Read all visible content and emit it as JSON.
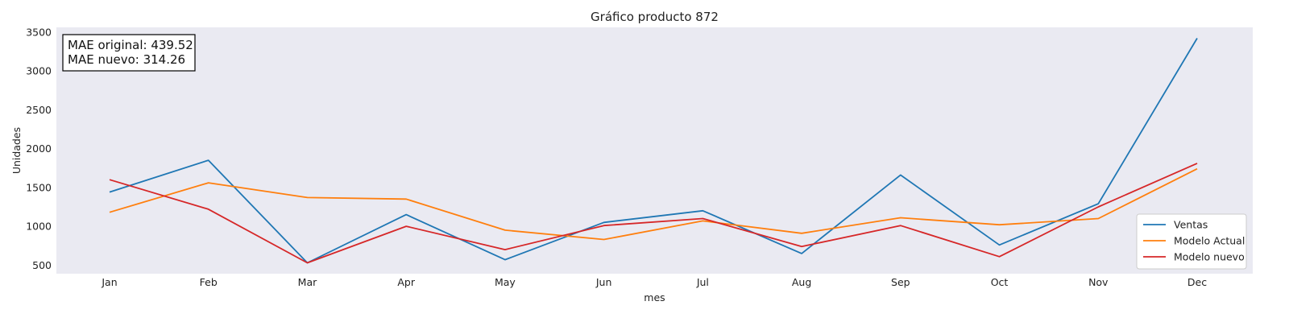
{
  "chart_data": {
    "type": "line",
    "title": "Gráfico producto 872",
    "xlabel": "mes",
    "ylabel": "Unidades",
    "categories": [
      "Jan",
      "Feb",
      "Mar",
      "Apr",
      "May",
      "Jun",
      "Jul",
      "Aug",
      "Sep",
      "Oct",
      "Nov",
      "Dec"
    ],
    "yticks": [
      500,
      1000,
      1500,
      2000,
      2500,
      3000,
      3500
    ],
    "ylim": [
      390,
      3560
    ],
    "grid": false,
    "legend_position": "bottom-right",
    "series": [
      {
        "name": "Ventas",
        "color": "#1f77b4",
        "values": [
          1440,
          1850,
          530,
          1150,
          570,
          1050,
          1200,
          650,
          1660,
          760,
          1290,
          3420
        ]
      },
      {
        "name": "Modelo Actual",
        "color": "#ff7f0e",
        "values": [
          1180,
          1560,
          1370,
          1350,
          950,
          830,
          1070,
          910,
          1110,
          1020,
          1100,
          1740
        ]
      },
      {
        "name": "Modelo nuevo",
        "color": "#d62728",
        "values": [
          1600,
          1220,
          530,
          1000,
          700,
          1010,
          1100,
          740,
          1010,
          610,
          1250,
          1810
        ]
      }
    ],
    "annotation": {
      "lines": [
        "MAE original: 439.52",
        "MAE nuevo: 314.26"
      ]
    },
    "plot_background": "#eaeaf2"
  }
}
